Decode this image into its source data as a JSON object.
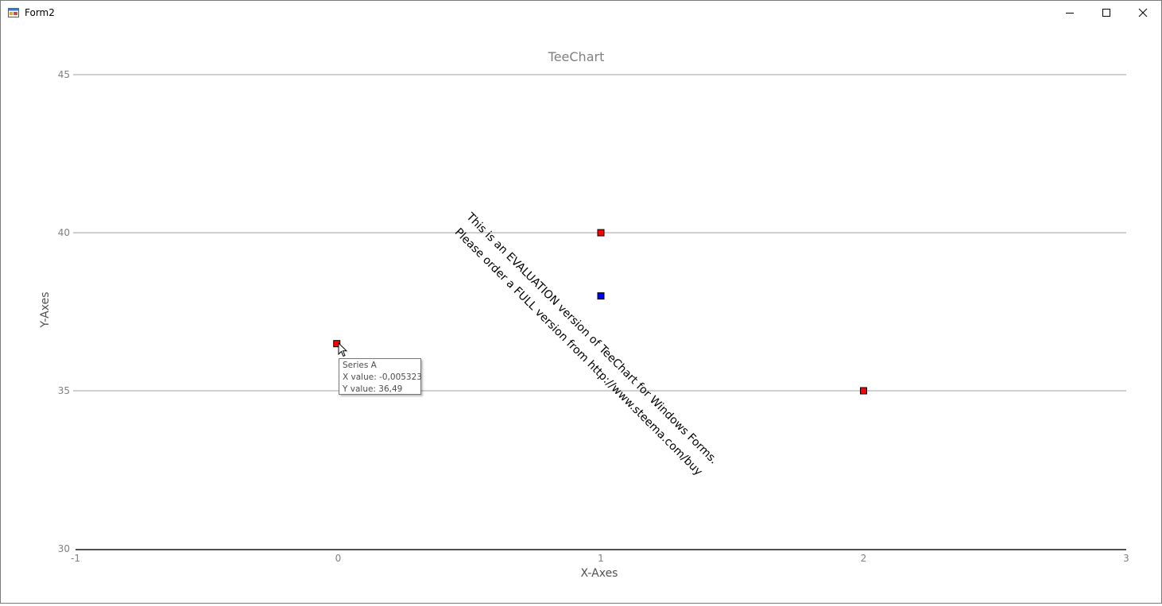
{
  "window": {
    "title": "Form2",
    "icon": "winforms-app-icon",
    "controls": [
      "minimize-icon",
      "maximize-icon",
      "close-icon"
    ]
  },
  "chart_data": {
    "type": "scatter",
    "title": "TeeChart",
    "xlabel": "X-Axes",
    "ylabel": "Y-Axes",
    "xlim": [
      -1,
      3
    ],
    "ylim": [
      30,
      45
    ],
    "x_ticks": [
      "-1",
      "0",
      "1",
      "2",
      "3"
    ],
    "y_ticks": [
      "30",
      "35",
      "40",
      "45"
    ],
    "grid": "horizontal",
    "series": [
      {
        "color": "#ff0000",
        "points": [
          {
            "x": -0.005323,
            "y": 36.49
          },
          {
            "x": 1,
            "y": 40
          },
          {
            "x": 2,
            "y": 35
          }
        ]
      },
      {
        "color": "#0000ff",
        "points": [
          {
            "x": 1,
            "y": 38
          }
        ]
      }
    ],
    "watermark": {
      "line1": "This is an EVALUATION version of TeeChart for Windows Forms.",
      "line2": "Please order a FULL version from http://www.steema.com/buy"
    }
  },
  "tooltip": {
    "series": "Series A",
    "x_text": "X value: -0,005323",
    "y_text": "Y value: 36,49"
  }
}
